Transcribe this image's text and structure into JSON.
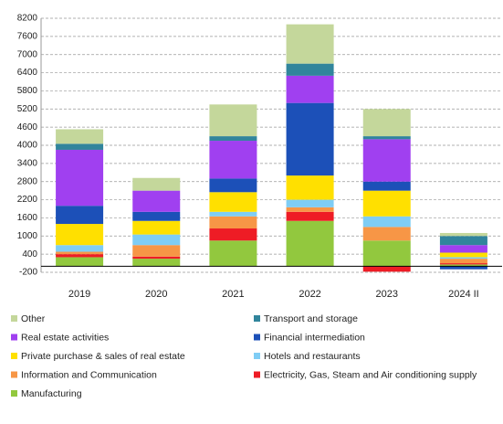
{
  "chart_data": {
    "type": "bar",
    "stacked": true,
    "categories": [
      "2019",
      "2020",
      "2021",
      "2022",
      "2023",
      "2024 II"
    ],
    "ylim": [
      -200,
      8200
    ],
    "yticks": [
      -200,
      400,
      1000,
      1600,
      2200,
      2800,
      3400,
      4000,
      4600,
      5200,
      5800,
      6400,
      7000,
      7600,
      8200
    ],
    "grid": true,
    "series": [
      {
        "name": "Manufacturing",
        "color": "#92c83e",
        "values": [
          300,
          250,
          850,
          1500,
          850,
          60
        ]
      },
      {
        "name": "Electricity, Gas, Steam and Air conditioning supply",
        "color": "#ee1c25",
        "values": [
          100,
          70,
          400,
          300,
          -180,
          40
        ]
      },
      {
        "name": "Information and Communication",
        "color": "#f79646",
        "values": [
          80,
          380,
          400,
          150,
          450,
          150
        ]
      },
      {
        "name": "Hotels and restaurants",
        "color": "#7fcdf5",
        "values": [
          220,
          350,
          150,
          250,
          350,
          50
        ]
      },
      {
        "name": "Private purchase & sales of real estate",
        "color": "#ffe000",
        "values": [
          700,
          450,
          650,
          800,
          850,
          150
        ]
      },
      {
        "name": "Financial intermediation",
        "color": "#1c50b8",
        "values": [
          600,
          300,
          450,
          2400,
          300,
          -100
        ]
      },
      {
        "name": "Real estate activities",
        "color": "#a040f0",
        "values": [
          1850,
          700,
          1250,
          900,
          1400,
          250
        ]
      },
      {
        "name": "Transport and storage",
        "color": "#31859c",
        "values": [
          200,
          0,
          150,
          400,
          100,
          300
        ]
      },
      {
        "name": "Other",
        "color": "#c4d79b",
        "values": [
          480,
          420,
          1050,
          1300,
          900,
          100
        ]
      }
    ]
  }
}
